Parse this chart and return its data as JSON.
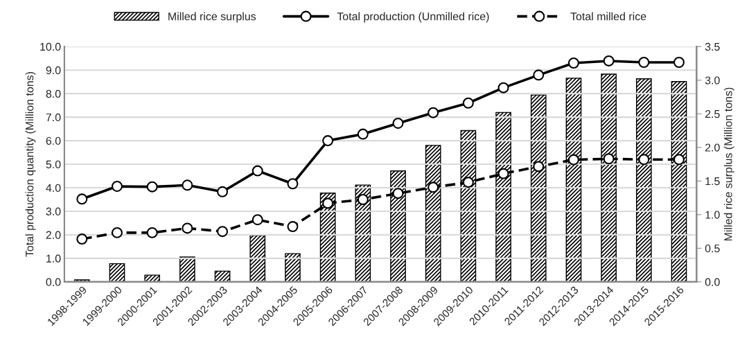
{
  "chart_data": {
    "type": "bar",
    "categories": [
      "1998-1999",
      "1999-2000",
      "2000-2001",
      "2001-2002",
      "2002-2003",
      "2003-2004",
      "2004-2005",
      "2005-2006",
      "2006-2007",
      "2007-2008",
      "2008-2009",
      "2009-2010",
      "2010-2011",
      "2011-2012",
      "2012-2013",
      "2013-2014",
      "2014-2015",
      "2015-2016"
    ],
    "series": [
      {
        "name": "Milled rice surplus",
        "axis": "y2",
        "color": "#000000",
        "values": [
          0.03,
          0.27,
          0.1,
          0.37,
          0.16,
          0.69,
          0.42,
          1.32,
          1.44,
          1.65,
          2.03,
          2.25,
          2.52,
          2.78,
          3.03,
          3.09,
          3.02,
          2.98
        ]
      },
      {
        "name": "Total production (Unmilled rice)",
        "type": "line",
        "line_style": "solid",
        "marker": "circle",
        "color": "#000000",
        "values": [
          3.52,
          4.06,
          4.04,
          4.11,
          3.83,
          4.72,
          4.17,
          6.0,
          6.28,
          6.74,
          7.19,
          7.6,
          8.25,
          8.79,
          9.3,
          9.39,
          9.33,
          9.33
        ]
      },
      {
        "name": "Total milled rice",
        "type": "line",
        "line_style": "dashed",
        "marker": "circle",
        "color": "#000000",
        "values": [
          1.82,
          2.09,
          2.09,
          2.28,
          2.14,
          2.64,
          2.35,
          3.34,
          3.5,
          3.76,
          4.02,
          4.23,
          4.6,
          4.9,
          5.19,
          5.23,
          5.2,
          5.2
        ]
      }
    ],
    "ylabel": "Total production quantity (Million tons)",
    "y2label": "Milled rice surplus (Million tons)",
    "ylim": [
      0,
      10
    ],
    "yticks": [
      {
        "value": 0,
        "label": "0.0"
      },
      {
        "value": 1,
        "label": "1.0"
      },
      {
        "value": 2,
        "label": "2.0"
      },
      {
        "value": 3,
        "label": "3.0"
      },
      {
        "value": 4,
        "label": "4.0"
      },
      {
        "value": 5,
        "label": "5.0"
      },
      {
        "value": 6,
        "label": "6.0"
      },
      {
        "value": 7,
        "label": "7.0"
      },
      {
        "value": 8,
        "label": "8.0"
      },
      {
        "value": 9,
        "label": "9.0"
      },
      {
        "value": 10,
        "label": "10.0"
      }
    ],
    "y2lim": [
      0,
      3.5
    ],
    "y2ticks": [
      {
        "value": 0,
        "label": "0.0"
      },
      {
        "value": 0.5,
        "label": "0.5"
      },
      {
        "value": 1,
        "label": "1.0"
      },
      {
        "value": 1.5,
        "label": "1.5"
      },
      {
        "value": 2,
        "label": "2.0"
      },
      {
        "value": 2.5,
        "label": "2.5"
      },
      {
        "value": 3,
        "label": "3.0"
      },
      {
        "value": 3.5,
        "label": "3.5"
      }
    ],
    "grid": "y",
    "legend": "top"
  }
}
